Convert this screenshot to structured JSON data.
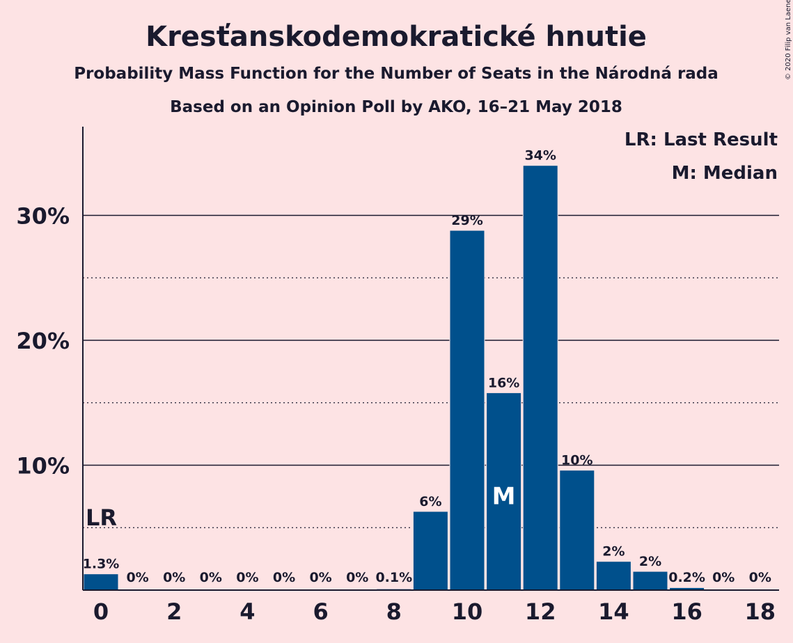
{
  "chart_data": {
    "type": "bar",
    "title": "Kresťanskodemokratické hnutie",
    "subtitle": "Probability Mass Function for the Number of Seats in the Národná rada",
    "subtitle2": "Based on an Opinion Poll by AKO, 16–21 May 2018",
    "categories": [
      0,
      1,
      2,
      3,
      4,
      5,
      6,
      7,
      8,
      9,
      10,
      11,
      12,
      13,
      14,
      15,
      16,
      17,
      18
    ],
    "values": [
      1.3,
      0,
      0,
      0,
      0,
      0,
      0,
      0,
      0.1,
      6.3,
      28.8,
      15.8,
      34.0,
      9.6,
      2.3,
      1.5,
      0.2,
      0,
      0
    ],
    "value_labels": [
      "1.3%",
      "0%",
      "0%",
      "0%",
      "0%",
      "0%",
      "0%",
      "0%",
      "0.1%",
      "6%",
      "29%",
      "16%",
      "34%",
      "10%",
      "2%",
      "2%",
      "0.2%",
      "0%",
      "0%"
    ],
    "x_tick_labels": [
      "0",
      "2",
      "4",
      "6",
      "8",
      "10",
      "12",
      "14",
      "16",
      "18"
    ],
    "x_tick_values": [
      0,
      2,
      4,
      6,
      8,
      10,
      12,
      14,
      16,
      18
    ],
    "y_tick_labels": [
      "10%",
      "20%",
      "30%"
    ],
    "y_tick_values": [
      10,
      20,
      30
    ],
    "y_dotted_values": [
      5,
      15,
      25
    ],
    "ylim": [
      0,
      37
    ],
    "xlabel": "",
    "ylabel": "",
    "legend": [
      "LR: Last Result",
      "M: Median"
    ],
    "legend_position": "top-right",
    "last_result": {
      "seat": 0,
      "label": "LR"
    },
    "median": {
      "seat": 11,
      "label": "M"
    },
    "bar_color": "#00508c",
    "background_color": "#fde3e4"
  },
  "copyright": "© 2020 Filip van Laenen"
}
